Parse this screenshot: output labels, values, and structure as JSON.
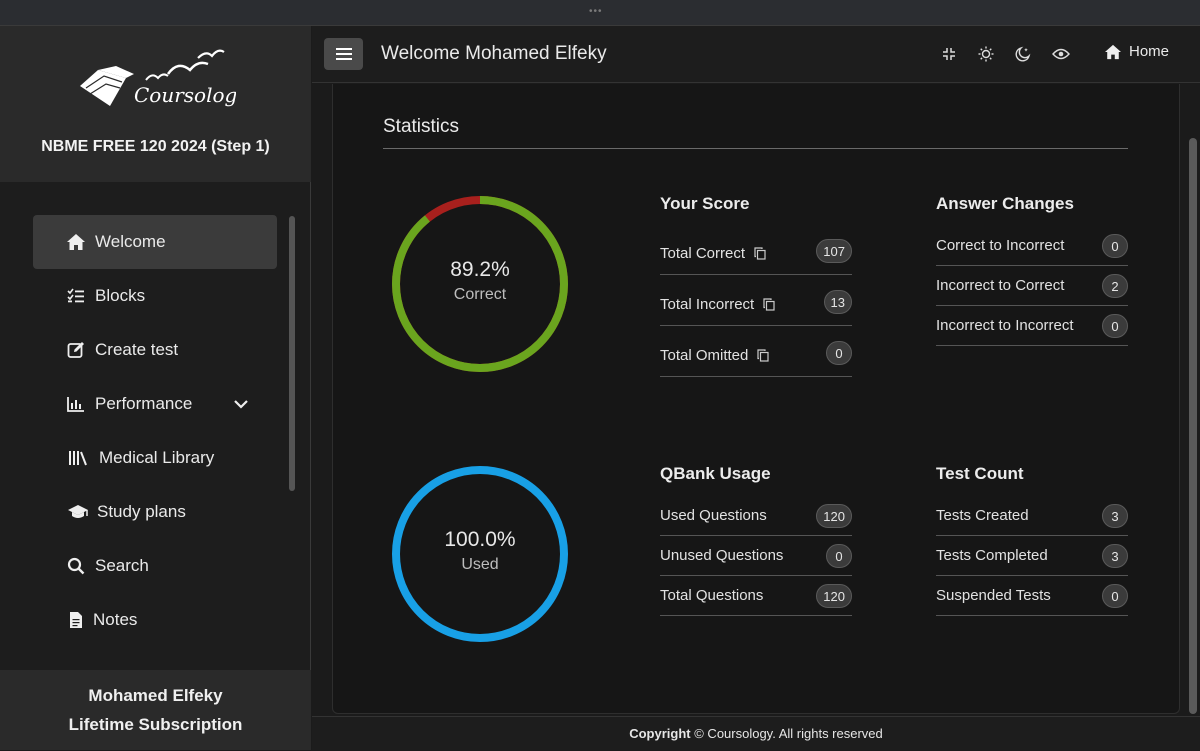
{
  "window": {
    "dots": "•••"
  },
  "brand": {
    "logo_text": "Coursology",
    "course_title": "NBME FREE 120 2024 (Step 1)"
  },
  "sidebar": {
    "items": [
      {
        "label": "Welcome",
        "icon": "home-icon",
        "active": true
      },
      {
        "label": "Blocks",
        "icon": "list-check-icon"
      },
      {
        "label": "Create test",
        "icon": "edit-icon"
      },
      {
        "label": "Performance",
        "icon": "chart-icon",
        "has_dropdown": true
      },
      {
        "label": "Medical Library",
        "icon": "library-icon"
      },
      {
        "label": "Study plans",
        "icon": "graduation-cap-icon"
      },
      {
        "label": "Search",
        "icon": "search-icon"
      },
      {
        "label": "Notes",
        "icon": "file-icon"
      }
    ],
    "user_name": "Mohamed Elfeky",
    "subscription": "Lifetime Subscription"
  },
  "header": {
    "welcome": "Welcome Mohamed Elfeky",
    "home_label": "Home"
  },
  "statistics": {
    "title": "Statistics",
    "score_donut": {
      "percent_text": "89.2%",
      "label": "Correct",
      "correct_fraction": 0.892,
      "color_correct": "#6aa51e",
      "color_incorrect": "#a8201d"
    },
    "usage_donut": {
      "percent_text": "100.0%",
      "label": "Used",
      "used_fraction": 1.0,
      "color": "#18a0e6"
    },
    "your_score": {
      "title": "Your Score",
      "rows": [
        {
          "label": "Total Correct",
          "value": "107"
        },
        {
          "label": "Total Incorrect",
          "value": "13"
        },
        {
          "label": "Total Omitted",
          "value": "0"
        }
      ]
    },
    "answer_changes": {
      "title": "Answer Changes",
      "rows": [
        {
          "label": "Correct to Incorrect",
          "value": "0"
        },
        {
          "label": "Incorrect to Correct",
          "value": "2"
        },
        {
          "label": "Incorrect to Incorrect",
          "value": "0"
        }
      ]
    },
    "qbank_usage": {
      "title": "QBank Usage",
      "rows": [
        {
          "label": "Used Questions",
          "value": "120"
        },
        {
          "label": "Unused Questions",
          "value": "0"
        },
        {
          "label": "Total Questions",
          "value": "120"
        }
      ]
    },
    "test_count": {
      "title": "Test Count",
      "rows": [
        {
          "label": "Tests Created",
          "value": "3"
        },
        {
          "label": "Tests Completed",
          "value": "3"
        },
        {
          "label": "Suspended Tests",
          "value": "0"
        }
      ]
    }
  },
  "footer": {
    "copyright_bold": "Copyright",
    "copyright_rest": "© Coursology. All rights reserved"
  }
}
